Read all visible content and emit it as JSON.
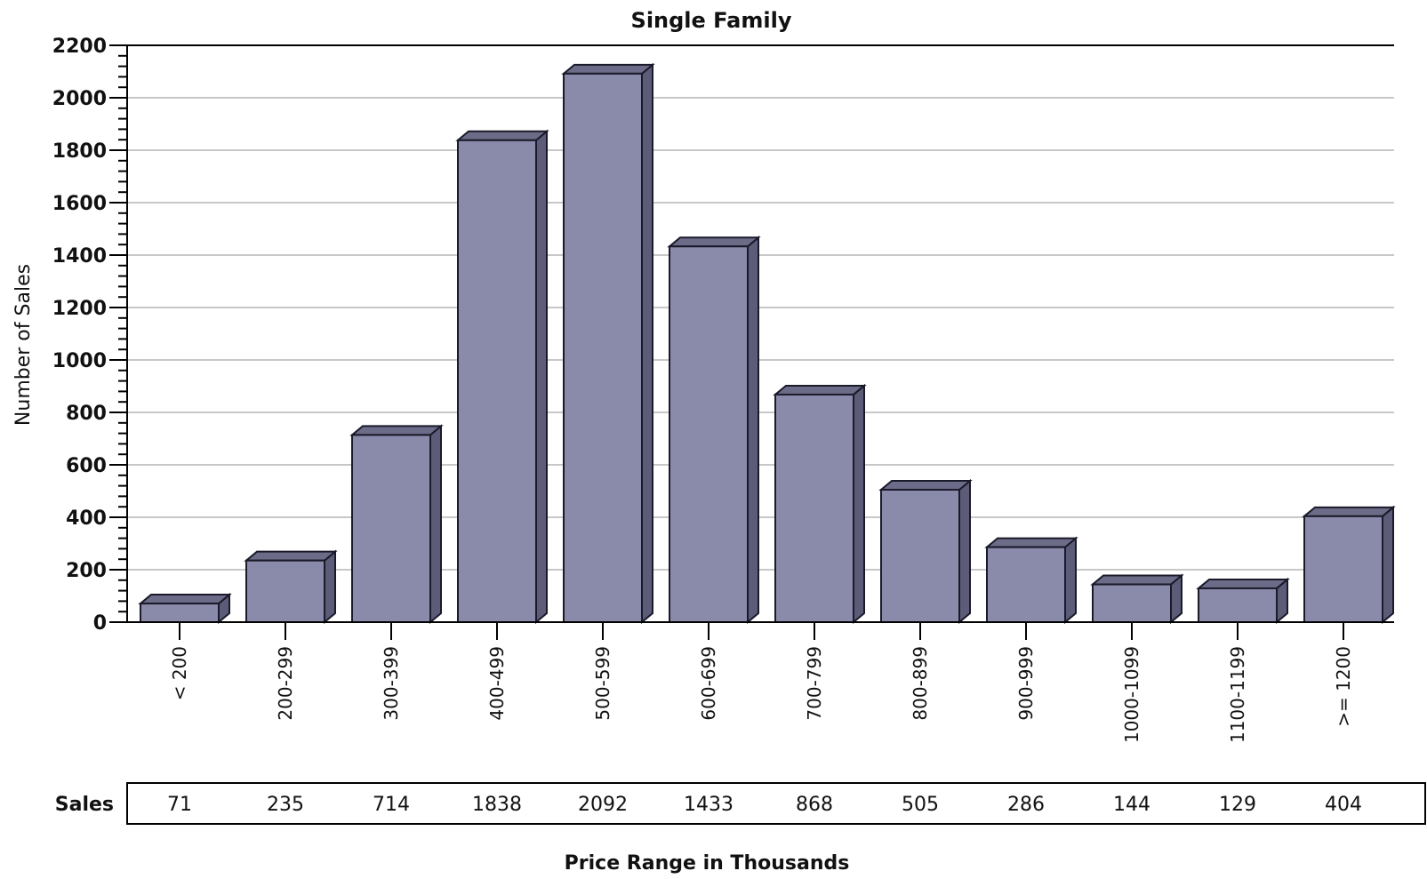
{
  "chart_data": {
    "type": "bar",
    "title": "Single Family",
    "xlabel": "Price Range in Thousands",
    "ylabel": "Number of Sales",
    "ylim": [
      0,
      2200
    ],
    "yticks": [
      0,
      200,
      400,
      600,
      800,
      1000,
      1200,
      1400,
      1600,
      1800,
      2000,
      2200
    ],
    "grid": true,
    "categories": [
      "< 200",
      "200-299",
      "300-399",
      "400-499",
      "500-599",
      "600-699",
      "700-799",
      "800-899",
      "900-999",
      "1000-1099",
      "1100-1199",
      ">= 1200"
    ],
    "values": [
      71,
      235,
      714,
      1838,
      2092,
      1433,
      868,
      505,
      286,
      144,
      129,
      404
    ],
    "table": {
      "row_label": "Sales",
      "values": [
        "71",
        "235",
        "714",
        "1838",
        "2092",
        "1433",
        "868",
        "505",
        "286",
        "144",
        "129",
        "404"
      ]
    },
    "colors": {
      "bar_front": "#8a8aaa",
      "bar_side": "#5c5c78",
      "bar_top": "#6c6c88",
      "grid": "#c8c8c8"
    }
  }
}
